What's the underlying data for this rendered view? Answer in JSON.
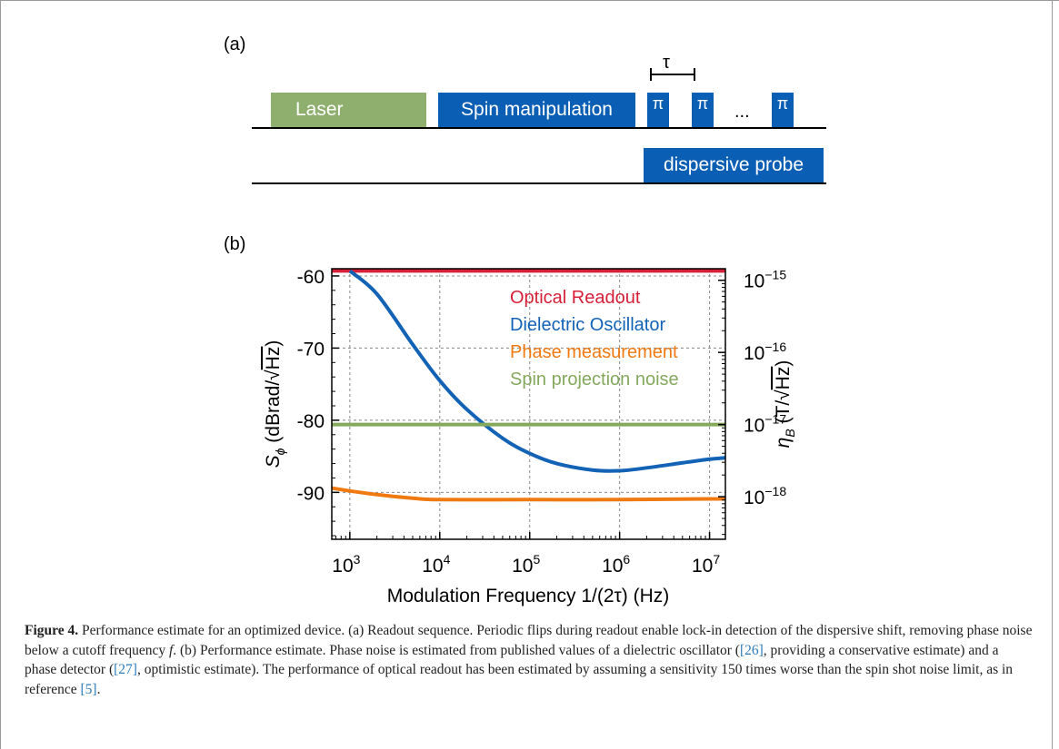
{
  "panel_a": {
    "label": "(a)",
    "laser_label": "Laser",
    "spin_manipulation_label": "Spin manipulation",
    "pi_symbol": "π",
    "tau_symbol": "τ",
    "ellipsis": "...",
    "dispersive_probe_label": "dispersive probe",
    "colors": {
      "laser": "#8faf6e",
      "blue": "#0a5fb4"
    }
  },
  "panel_b": {
    "label": "(b)"
  },
  "chart_data": {
    "type": "line",
    "xlabel": "Modulation Frequency 1/(2τ) (Hz)",
    "ylabel_left": "S_ϕ (dBrad/√Hz)",
    "ylabel_right": "η_B (T/√Hz)",
    "x_scale": "log",
    "xlim": [
      630,
      15000000
    ],
    "x_ticks": [
      {
        "base": "10",
        "exp": "3"
      },
      {
        "base": "10",
        "exp": "4"
      },
      {
        "base": "10",
        "exp": "5"
      },
      {
        "base": "10",
        "exp": "6"
      },
      {
        "base": "10",
        "exp": "7"
      }
    ],
    "ylim": [
      -96.5,
      -59
    ],
    "y_ticks": [
      "-60",
      "-70",
      "-80",
      "-90"
    ],
    "right_axis_scale": "log",
    "right_ticks": [
      {
        "base": "10",
        "exp": "−15"
      },
      {
        "base": "10",
        "exp": "−16"
      },
      {
        "base": "10",
        "exp": "−17"
      },
      {
        "base": "10",
        "exp": "−18"
      }
    ],
    "grid": "dotted",
    "legend_position": "top-right",
    "series": [
      {
        "name": "Optical Readout",
        "color": "#d6203a",
        "x": [
          630,
          15000000
        ],
        "y": [
          -59.3,
          -59.3
        ]
      },
      {
        "name": "Dielectric Oscillator",
        "color": "#1262b5",
        "x": [
          1000,
          2000,
          5000,
          10000,
          20000,
          50000,
          100000,
          200000,
          500000,
          1000000,
          2000000,
          5000000,
          10000000,
          15000000
        ],
        "y": [
          -59.3,
          -62.5,
          -69.5,
          -74.5,
          -78.5,
          -82.5,
          -84.6,
          -86.0,
          -86.9,
          -87.0,
          -86.6,
          -85.9,
          -85.4,
          -85.2
        ]
      },
      {
        "name": "Phase measurement",
        "color": "#f07a12",
        "x": [
          630,
          1000,
          2000,
          5000,
          10000,
          100000,
          1000000,
          10000000,
          15000000
        ],
        "y": [
          -89.4,
          -89.8,
          -90.3,
          -90.8,
          -91.0,
          -91.0,
          -91.0,
          -90.9,
          -90.9
        ]
      },
      {
        "name": "Spin projection noise",
        "color": "#84a95d",
        "x": [
          630,
          15000000
        ],
        "y": [
          -80.6,
          -80.6
        ]
      }
    ]
  },
  "caption": {
    "fig_label": "Figure 4.",
    "part1": "  Performance estimate for an optimized device. (a) Readout sequence. Periodic flips during readout enable lock-in detection of the dispersive shift, removing phase noise below a cutoff frequency ",
    "f": "f",
    "part2": ". (b) Performance estimate. Phase noise is estimated from published values of a dielectric oscillator (",
    "ref26": "[26]",
    "part3": ", providing a conservative estimate) and a phase detector (",
    "ref27": "[27]",
    "part4": ", optimistic estimate). The performance of optical readout has been estimated by assuming a sensitivity 150 times worse than the spin shot noise limit, as in reference ",
    "ref5": "[5]",
    "part5": "."
  }
}
